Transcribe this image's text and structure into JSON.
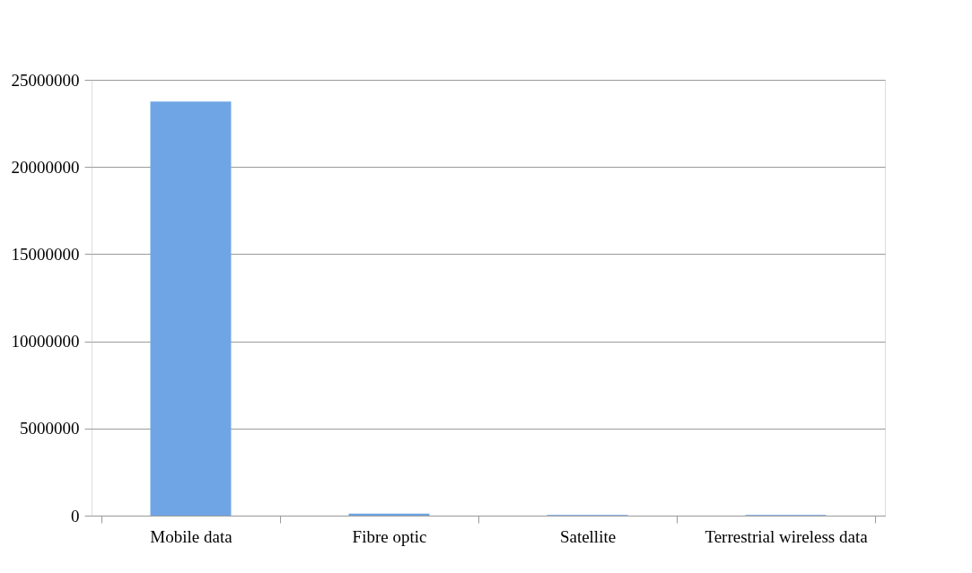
{
  "chart_data": {
    "type": "bar",
    "categories": [
      "Mobile data",
      "Fibre optic",
      "Satellite",
      "Terrestrial wireless data"
    ],
    "values": [
      23750000,
      120000,
      40000,
      40000
    ],
    "color": "#6fa5e4",
    "ylim": [
      0,
      25000000
    ],
    "yticks": [
      0,
      5000000,
      10000000,
      15000000,
      20000000,
      25000000
    ],
    "grid": "y"
  }
}
